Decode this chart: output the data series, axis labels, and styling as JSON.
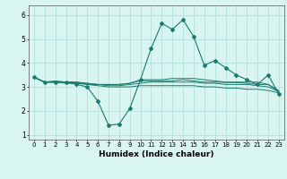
{
  "xlabel": "Humidex (Indice chaleur)",
  "x": [
    0,
    1,
    2,
    3,
    4,
    5,
    6,
    7,
    8,
    9,
    10,
    11,
    12,
    13,
    14,
    15,
    16,
    17,
    18,
    19,
    20,
    21,
    22,
    23
  ],
  "line_main": [
    3.4,
    3.2,
    3.2,
    3.2,
    3.1,
    3.0,
    2.4,
    1.4,
    1.45,
    2.1,
    3.3,
    4.6,
    5.65,
    5.4,
    5.8,
    5.1,
    3.9,
    4.1,
    3.8,
    3.5,
    3.3,
    3.1,
    3.5,
    2.7
  ],
  "line2": [
    3.4,
    3.2,
    3.2,
    3.2,
    3.2,
    3.15,
    3.1,
    3.1,
    3.1,
    3.15,
    3.3,
    3.3,
    3.3,
    3.35,
    3.35,
    3.35,
    3.3,
    3.25,
    3.2,
    3.2,
    3.2,
    3.2,
    3.1,
    2.85
  ],
  "line3": [
    3.4,
    3.2,
    3.2,
    3.2,
    3.2,
    3.1,
    3.05,
    3.0,
    3.0,
    3.0,
    3.05,
    3.05,
    3.05,
    3.05,
    3.05,
    3.05,
    3.0,
    3.0,
    2.95,
    2.95,
    2.9,
    2.9,
    2.85,
    2.75
  ],
  "line4": [
    3.4,
    3.2,
    3.2,
    3.15,
    3.15,
    3.15,
    3.1,
    3.05,
    3.05,
    3.1,
    3.15,
    3.2,
    3.2,
    3.2,
    3.2,
    3.2,
    3.15,
    3.15,
    3.1,
    3.1,
    3.1,
    3.05,
    3.0,
    2.8
  ],
  "line5": [
    3.4,
    3.2,
    3.25,
    3.2,
    3.15,
    3.1,
    3.1,
    3.1,
    3.1,
    3.15,
    3.25,
    3.25,
    3.25,
    3.25,
    3.3,
    3.25,
    3.2,
    3.2,
    3.18,
    3.18,
    3.15,
    3.1,
    3.1,
    2.8
  ],
  "color": "#1a7a6e",
  "bg_color": "#d8f5f0",
  "grid_color": "#aadddd",
  "ylim": [
    0.8,
    6.4
  ],
  "xlim": [
    -0.5,
    23.5
  ],
  "yticks": [
    1,
    2,
    3,
    4,
    5,
    6
  ],
  "xticks": [
    0,
    1,
    2,
    3,
    4,
    5,
    6,
    7,
    8,
    9,
    10,
    11,
    12,
    13,
    14,
    15,
    16,
    17,
    18,
    19,
    20,
    21,
    22,
    23
  ],
  "xlabel_fontsize": 6.5,
  "tick_fontsize": 5.0
}
